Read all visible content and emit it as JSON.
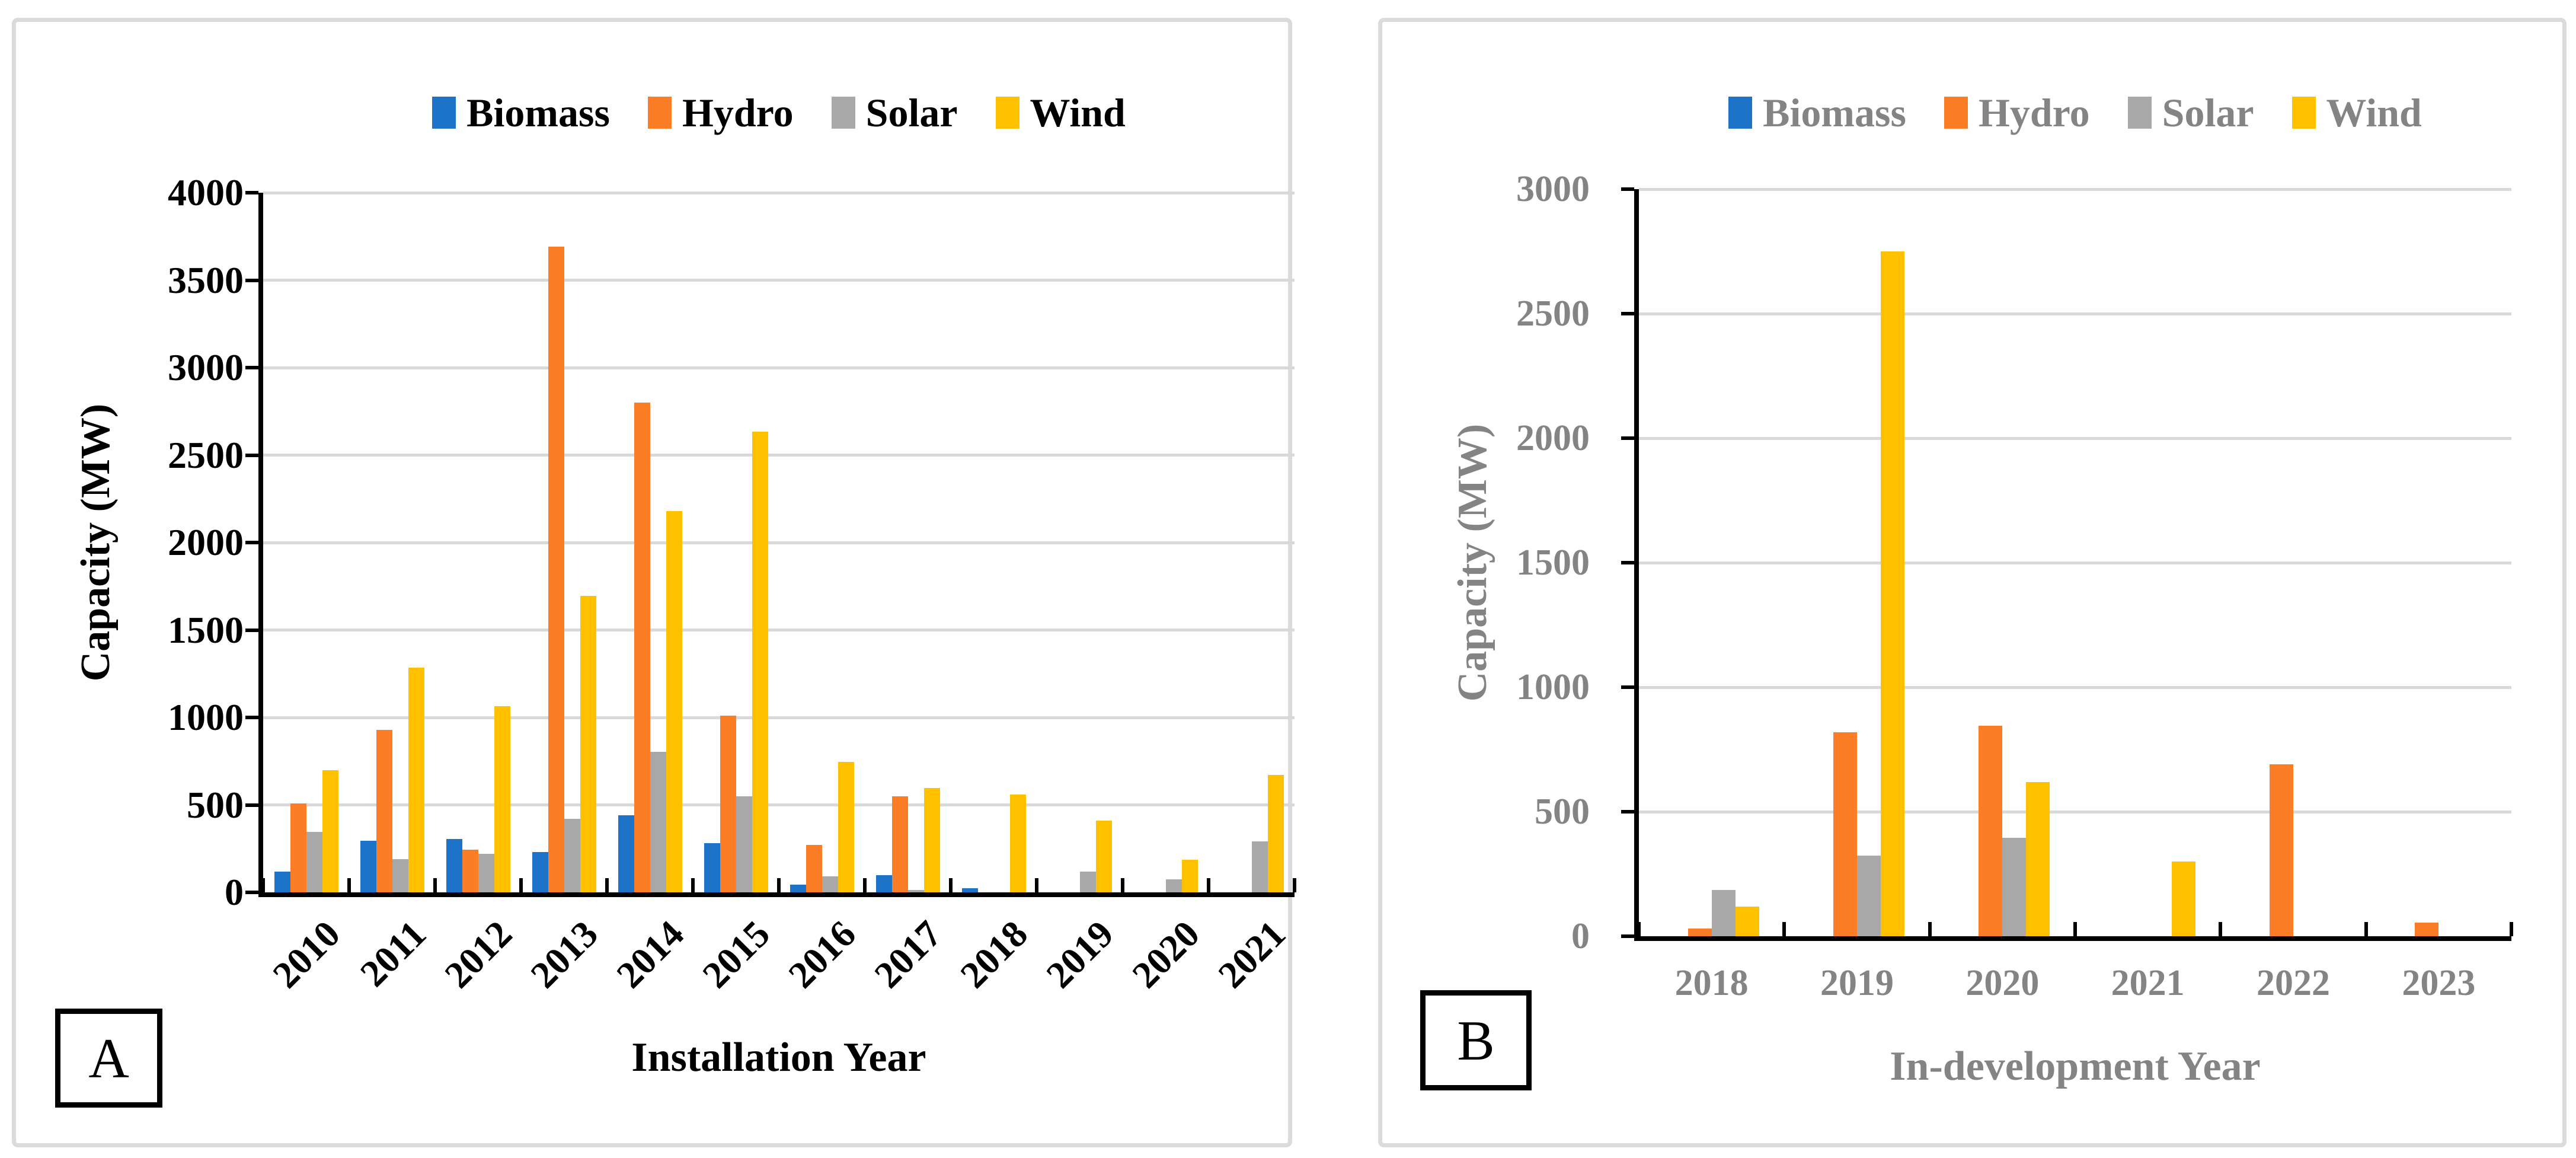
{
  "colors": {
    "biomass": "#1c73c8",
    "hydro": "#fb7d26",
    "solar": "#a8a8a8",
    "wind": "#ffc000",
    "grid": "#d9d9d9",
    "axis": "#000000",
    "panel_border": "#dbdbdb",
    "panel_a_text": "#000000",
    "panel_b_text": "#848484"
  },
  "chart_data": [
    {
      "type": "bar",
      "panel_label": "A",
      "title": "",
      "xlabel": "Installation Year",
      "ylabel": "Capacity (MW)",
      "ylim": [
        0,
        4000
      ],
      "ytick_step": 500,
      "grid": true,
      "legend_position": "top",
      "x_label_rotation": -45,
      "text_color": "#000000",
      "categories": [
        "2010",
        "2011",
        "2012",
        "2013",
        "2014",
        "2015",
        "2016",
        "2017",
        "2018",
        "2019",
        "2020",
        "2021"
      ],
      "series": [
        {
          "name": "Biomass",
          "color": "#1c73c8",
          "values": [
            120,
            295,
            305,
            230,
            440,
            280,
            45,
            100,
            25,
            0,
            0,
            0
          ]
        },
        {
          "name": "Hydro",
          "color": "#fb7d26",
          "values": [
            510,
            930,
            245,
            3690,
            2800,
            1010,
            270,
            550,
            0,
            0,
            0,
            0
          ]
        },
        {
          "name": "Solar",
          "color": "#a8a8a8",
          "values": [
            345,
            190,
            220,
            420,
            805,
            550,
            90,
            15,
            0,
            120,
            75,
            290
          ]
        },
        {
          "name": "Wind",
          "color": "#ffc000",
          "values": [
            700,
            1285,
            1065,
            1695,
            2180,
            2635,
            745,
            595,
            560,
            410,
            185,
            670
          ]
        }
      ]
    },
    {
      "type": "bar",
      "panel_label": "B",
      "title": "",
      "xlabel": "In-development Year",
      "ylabel": "Capacity (MW)",
      "ylim": [
        0,
        3000
      ],
      "ytick_step": 500,
      "grid": true,
      "legend_position": "top",
      "x_label_rotation": 0,
      "text_color": "#848484",
      "categories": [
        "2018",
        "2019",
        "2020",
        "2021",
        "2022",
        "2023"
      ],
      "series": [
        {
          "name": "Biomass",
          "color": "#1c73c8",
          "values": [
            0,
            0,
            0,
            0,
            0,
            0
          ]
        },
        {
          "name": "Hydro",
          "color": "#fb7d26",
          "values": [
            30,
            820,
            845,
            0,
            690,
            55
          ]
        },
        {
          "name": "Solar",
          "color": "#a8a8a8",
          "values": [
            185,
            325,
            395,
            0,
            0,
            0
          ]
        },
        {
          "name": "Wind",
          "color": "#ffc000",
          "values": [
            120,
            2750,
            620,
            300,
            0,
            0
          ]
        }
      ]
    }
  ]
}
